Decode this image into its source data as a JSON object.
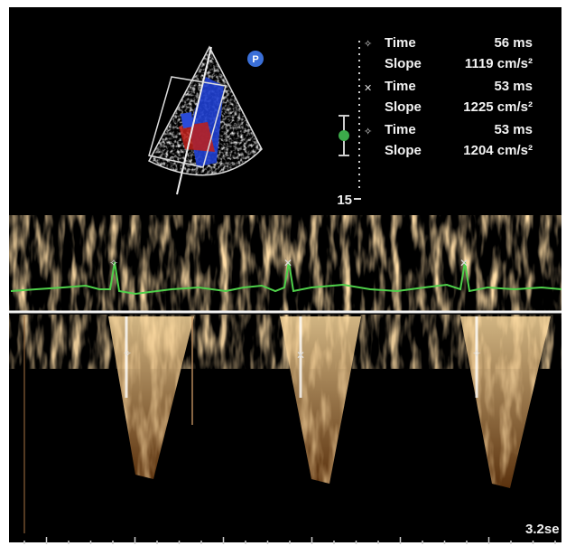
{
  "echo_icon": {
    "label": "P"
  },
  "measurements": [
    {
      "time_label": "Time",
      "time": "56 ms",
      "slope_label": "Slope",
      "slope": "1119 cm/s²"
    },
    {
      "time_label": "Time",
      "time": "53 ms",
      "slope_label": "Slope",
      "slope": "1225 cm/s²"
    },
    {
      "time_label": "Time",
      "time": "53 ms",
      "slope_label": "Slope",
      "slope": "1204 cm/s²"
    }
  ],
  "scale_label": "15",
  "sweep_label": "3.2se"
}
